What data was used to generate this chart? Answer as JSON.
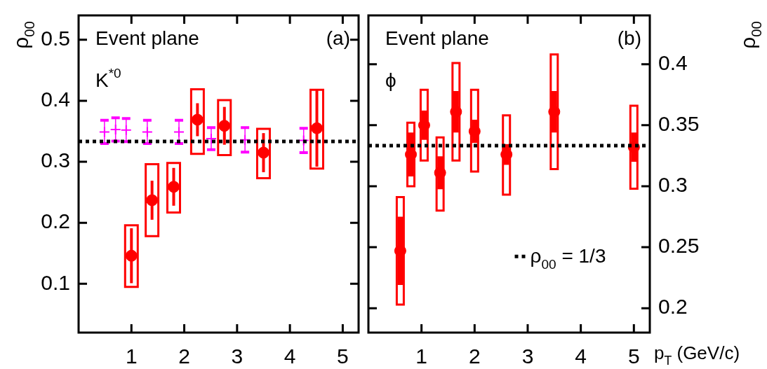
{
  "chart_data": [
    {
      "type": "scatter",
      "ylabel": "ρ$_{00}$",
      "xlim": [
        0,
        5.3
      ],
      "xticks": [
        1,
        2,
        3,
        4,
        5
      ],
      "ylim": [
        0.02,
        0.54
      ],
      "yticks": [
        0.1,
        0.2,
        0.3,
        0.4,
        0.5
      ],
      "annotations": [
        "Event plane",
        "K$^{*0}$",
        "(a)"
      ],
      "ref_lines": [
        {
          "axis": "y",
          "value": 0.3333,
          "color": "#000000",
          "line_style": "dotted"
        }
      ],
      "series": [
        {
          "type": "bar",
          "color": "#ff0000",
          "x": [
            1.0,
            1.39,
            1.8,
            2.25,
            2.76,
            3.5,
            4.51
          ],
          "base": [
            0.095,
            0.178,
            0.217,
            0.313,
            0.311,
            0.273,
            0.289
          ],
          "values": [
            0.101,
            0.118,
            0.081,
            0.106,
            0.09,
            0.081,
            0.129
          ]
        },
        {
          "color": "#ff00ff",
          "marker": "cross",
          "x": [
            0.49,
            0.7,
            0.9,
            1.3,
            1.9,
            2.51,
            3.15,
            4.26
          ],
          "values": [
            0.349,
            0.353,
            0.352,
            0.349,
            0.349,
            0.338,
            0.336,
            0.335
          ],
          "errors": [
            0.019,
            0.019,
            0.019,
            0.019,
            0.019,
            0.018,
            0.02,
            0.02
          ]
        },
        {
          "color": "#ff0000",
          "marker": "circle",
          "x": [
            1.0,
            1.39,
            1.8,
            2.25,
            2.76,
            3.5,
            4.51
          ],
          "values": [
            0.146,
            0.237,
            0.259,
            0.369,
            0.359,
            0.315,
            0.355
          ],
          "errors": [
            0.045,
            0.032,
            0.031,
            0.027,
            0.031,
            0.032,
            0.063
          ]
        }
      ]
    },
    {
      "type": "scatter",
      "y2label": "ρ$_{00}$",
      "xlabel": "p$_{T}$ (GeV/c)",
      "xlim": [
        0,
        5.3
      ],
      "xticks": [
        1,
        2,
        3,
        4,
        5
      ],
      "y2lim": [
        0.18,
        0.44
      ],
      "y2ticks": [
        0.2,
        0.25,
        0.3,
        0.35,
        0.4
      ],
      "annotations": [
        "Event plane",
        "ϕ",
        "(b)"
      ],
      "ref_lines": [
        {
          "axis": "y2",
          "value": 0.3333,
          "label": "ρ$_{00}$ = 1/3",
          "color": "#000000",
          "line_style": "dotted"
        }
      ],
      "series": [
        {
          "type": "bar",
          "axis": "y2",
          "color": "#ff0000",
          "base": [
            0.203,
            0.3,
            0.321,
            0.28,
            0.321,
            0.312,
            0.293,
            0.314,
            0.298
          ],
          "x": [
            0.6,
            0.8,
            1.05,
            1.35,
            1.65,
            2.0,
            2.6,
            3.5,
            5.0
          ],
          "values": [
            0.088,
            0.052,
            0.058,
            0.06,
            0.08,
            0.067,
            0.065,
            0.094,
            0.068
          ]
        },
        {
          "axis": "y2",
          "color": "#ff0000",
          "marker": "circle",
          "x": [
            0.6,
            0.8,
            1.05,
            1.35,
            1.65,
            2.0,
            2.6,
            3.5,
            5.0
          ],
          "values": [
            0.247,
            0.326,
            0.35,
            0.311,
            0.361,
            0.345,
            0.326,
            0.361,
            0.332
          ],
          "errors": [
            0.028,
            0.018,
            0.012,
            0.0135,
            0.017,
            0.0095,
            0.0085,
            0.017,
            0.012
          ]
        }
      ]
    }
  ]
}
